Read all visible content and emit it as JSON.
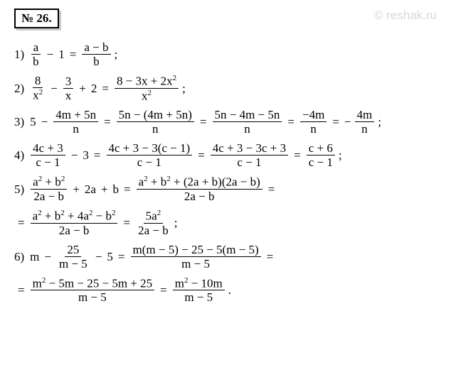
{
  "header": {
    "badge_label": "№ 26.",
    "watermark": "© reshak.ru"
  },
  "items": [
    {
      "num": "1)",
      "parts": [
        {
          "type": "frac",
          "num": "a",
          "den": "b"
        },
        {
          "type": "op",
          "text": "−"
        },
        {
          "type": "term",
          "text": "1"
        },
        {
          "type": "eq",
          "text": "="
        },
        {
          "type": "frac",
          "num": "a − b",
          "den": "b"
        },
        {
          "type": "term",
          "text": ";"
        }
      ]
    },
    {
      "num": "2)",
      "parts": [
        {
          "type": "frac",
          "num": "8",
          "den": "x²"
        },
        {
          "type": "op",
          "text": "−"
        },
        {
          "type": "frac",
          "num": "3",
          "den": "x"
        },
        {
          "type": "op",
          "text": "+"
        },
        {
          "type": "term",
          "text": "2"
        },
        {
          "type": "eq",
          "text": "="
        },
        {
          "type": "frac",
          "num": "8 − 3x + 2x²",
          "den": "x²"
        },
        {
          "type": "term",
          "text": ";"
        }
      ]
    },
    {
      "num": "3)",
      "parts": [
        {
          "type": "term",
          "text": "5"
        },
        {
          "type": "op",
          "text": "−"
        },
        {
          "type": "frac",
          "num": "4m + 5n",
          "den": "n"
        },
        {
          "type": "eq",
          "text": "="
        },
        {
          "type": "frac",
          "num": "5n − (4m + 5n)",
          "den": "n"
        },
        {
          "type": "eq",
          "text": "="
        },
        {
          "type": "frac",
          "num": "5n − 4m − 5n",
          "den": "n"
        },
        {
          "type": "eq",
          "text": "="
        },
        {
          "type": "frac",
          "num": "−4m",
          "den": "n"
        },
        {
          "type": "eq",
          "text": "="
        },
        {
          "type": "term",
          "text": "−"
        },
        {
          "type": "frac",
          "num": "4m",
          "den": "n"
        },
        {
          "type": "term",
          "text": ";"
        }
      ]
    },
    {
      "num": "4)",
      "parts": [
        {
          "type": "frac",
          "num": "4c + 3",
          "den": "c − 1"
        },
        {
          "type": "op",
          "text": "−"
        },
        {
          "type": "term",
          "text": "3"
        },
        {
          "type": "eq",
          "text": "="
        },
        {
          "type": "frac",
          "num": "4c + 3 − 3(c − 1)",
          "den": "c − 1"
        },
        {
          "type": "eq",
          "text": "="
        },
        {
          "type": "frac",
          "num": "4c + 3 − 3c + 3",
          "den": "c − 1"
        },
        {
          "type": "eq",
          "text": "="
        },
        {
          "type": "frac",
          "num": "c + 6",
          "den": "c − 1"
        },
        {
          "type": "term",
          "text": ";"
        }
      ]
    },
    {
      "num": "5)",
      "parts": [
        {
          "type": "frac",
          "num": "a² + b²",
          "den": "2a − b"
        },
        {
          "type": "op",
          "text": "+"
        },
        {
          "type": "term",
          "text": "2a"
        },
        {
          "type": "op",
          "text": "+"
        },
        {
          "type": "term",
          "text": "b"
        },
        {
          "type": "eq",
          "text": "="
        },
        {
          "type": "frac",
          "num": "a² + b² + (2a + b)(2a − b)",
          "den": "2a − b"
        },
        {
          "type": "eq",
          "text": "="
        }
      ],
      "cont": [
        {
          "type": "eq",
          "text": "="
        },
        {
          "type": "frac",
          "num": "a² + b² + 4a² − b²",
          "den": "2a − b"
        },
        {
          "type": "eq",
          "text": "="
        },
        {
          "type": "frac",
          "num": "5a²",
          "den": "2a − b"
        },
        {
          "type": "term",
          "text": ";"
        }
      ]
    },
    {
      "num": "6)",
      "parts": [
        {
          "type": "term",
          "text": "m"
        },
        {
          "type": "op",
          "text": "−"
        },
        {
          "type": "frac",
          "num": "25",
          "den": "m − 5"
        },
        {
          "type": "op",
          "text": "−"
        },
        {
          "type": "term",
          "text": "5"
        },
        {
          "type": "eq",
          "text": "="
        },
        {
          "type": "frac",
          "num": "m(m − 5) − 25 − 5(m − 5)",
          "den": "m − 5"
        },
        {
          "type": "eq",
          "text": "="
        }
      ],
      "cont": [
        {
          "type": "eq",
          "text": "="
        },
        {
          "type": "frac",
          "num": "m² − 5m − 25 − 5m + 25",
          "den": "m − 5"
        },
        {
          "type": "eq",
          "text": "="
        },
        {
          "type": "frac",
          "num": "m² − 10m",
          "den": "m − 5"
        },
        {
          "type": "term",
          "text": "."
        }
      ]
    }
  ]
}
